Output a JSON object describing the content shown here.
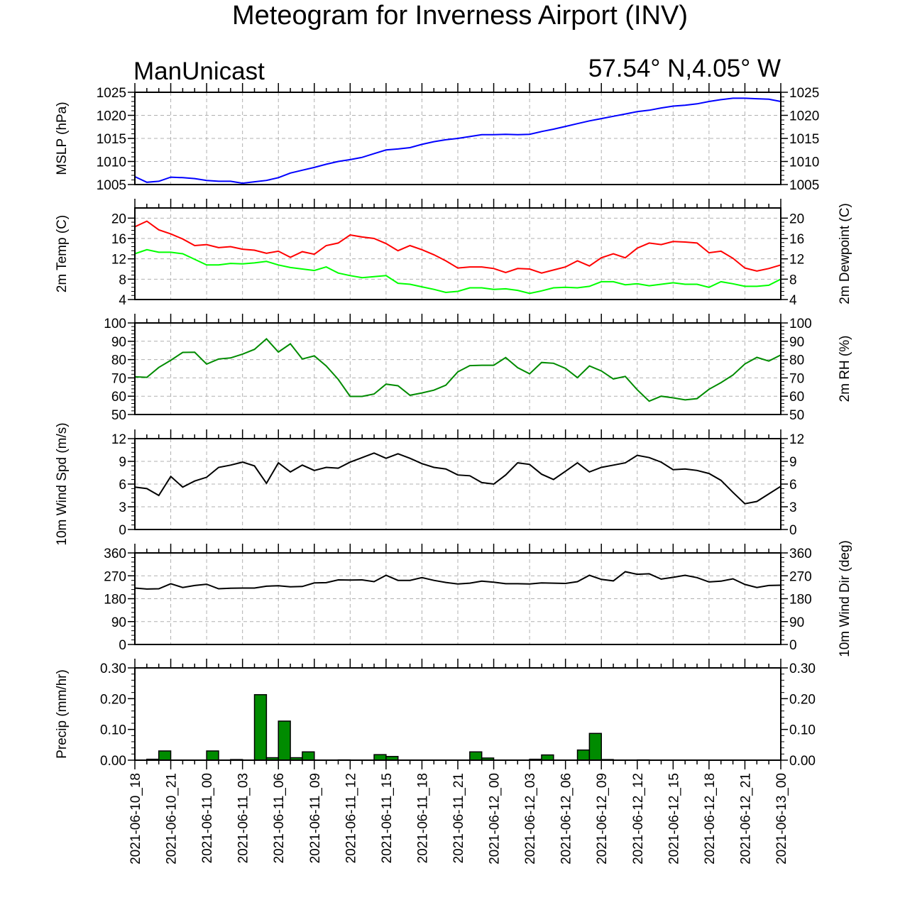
{
  "title": "Meteogram for Inverness Airport (INV)",
  "model": "ManUnicast",
  "location": "57.54° N,4.05° W",
  "chart_data": [
    {
      "id": "mslp",
      "type": "line",
      "ylabel": "MSLP (hPa)",
      "ylim": [
        1005,
        1025
      ],
      "yticks": [
        1005,
        1010,
        1015,
        1020,
        1025
      ],
      "tick_format": "0",
      "grid": true,
      "color": "#0000ff",
      "values": [
        1006.7,
        1005.5,
        1005.7,
        1006.6,
        1006.5,
        1006.3,
        1005.9,
        1005.7,
        1005.7,
        1005.3,
        1005.6,
        1005.9,
        1006.5,
        1007.5,
        1008.1,
        1008.7,
        1009.4,
        1010.0,
        1010.4,
        1010.9,
        1011.7,
        1012.5,
        1012.7,
        1013.0,
        1013.7,
        1014.3,
        1014.7,
        1015.0,
        1015.4,
        1015.8,
        1015.8,
        1015.9,
        1015.8,
        1015.9,
        1016.5,
        1017.0,
        1017.6,
        1018.2,
        1018.8,
        1019.3,
        1019.8,
        1020.3,
        1020.8,
        1021.1,
        1021.6,
        1022.0,
        1022.2,
        1022.5,
        1023.0,
        1023.4,
        1023.7,
        1023.7,
        1023.6,
        1023.5,
        1023.0
      ]
    },
    {
      "id": "temp",
      "type": "line",
      "ylabel": "2m Temp (C)",
      "ylabel_right": "2m Dewpoint (C)",
      "ylim": [
        4,
        22
      ],
      "yticks": [
        4,
        8,
        12,
        16,
        20
      ],
      "tick_format": "0",
      "grid": true,
      "series": [
        {
          "name": "2m Temp (C)",
          "color": "#ff0000",
          "values": [
            18.3,
            19.4,
            17.7,
            16.9,
            15.9,
            14.6,
            14.8,
            14.2,
            14.4,
            13.9,
            13.7,
            13.1,
            13.5,
            12.3,
            13.4,
            12.9,
            14.6,
            15.1,
            16.7,
            16.3,
            16.0,
            15.0,
            13.6,
            14.6,
            13.8,
            12.8,
            11.6,
            10.2,
            10.4,
            10.4,
            10.1,
            9.3,
            10.1,
            10.0,
            9.2,
            9.8,
            10.4,
            11.6,
            10.6,
            12.2,
            13.0,
            12.2,
            14.1,
            15.1,
            14.8,
            15.4,
            15.3,
            15.1,
            13.2,
            13.5,
            12.1,
            10.2,
            9.6,
            10.1,
            10.8
          ]
        },
        {
          "name": "2m Dewpoint (C)",
          "color": "#00ff00",
          "values": [
            13.0,
            13.8,
            13.3,
            13.3,
            13.0,
            11.9,
            10.8,
            10.8,
            11.1,
            11.0,
            11.2,
            11.5,
            10.8,
            10.3,
            10.0,
            9.7,
            10.4,
            9.2,
            8.7,
            8.3,
            8.5,
            8.7,
            7.2,
            7.0,
            6.5,
            6.0,
            5.4,
            5.6,
            6.3,
            6.3,
            6.0,
            6.1,
            5.8,
            5.2,
            5.7,
            6.3,
            6.4,
            6.3,
            6.6,
            7.5,
            7.5,
            6.9,
            7.1,
            6.7,
            7.0,
            7.3,
            7.0,
            7.0,
            6.4,
            7.5,
            7.1,
            6.6,
            6.6,
            6.8,
            8.0
          ]
        }
      ]
    },
    {
      "id": "rh",
      "type": "line",
      "ylabel": "",
      "ylabel_right": "2m RH (%)",
      "ylim": [
        50,
        100
      ],
      "yticks": [
        50,
        60,
        70,
        80,
        90,
        100
      ],
      "tick_format": "0",
      "grid": true,
      "color": "#008b00",
      "values": [
        70.6,
        70.3,
        75.7,
        79.6,
        83.9,
        84.0,
        77.5,
        80.3,
        80.9,
        83.0,
        85.6,
        91.3,
        84.1,
        88.6,
        80.3,
        82.0,
        76.5,
        69.2,
        59.9,
        59.9,
        61.2,
        66.6,
        65.7,
        60.5,
        61.8,
        63.3,
        66.0,
        73.3,
        76.7,
        76.9,
        76.9,
        81.1,
        75.6,
        72.2,
        78.4,
        78.0,
        75.2,
        70.1,
        76.5,
        73.8,
        69.4,
        70.8,
        63.5,
        57.3,
        60.0,
        59.1,
        58.0,
        58.7,
        63.8,
        67.4,
        71.6,
        77.6,
        81.2,
        79.2,
        82.5
      ]
    },
    {
      "id": "wspd",
      "type": "line",
      "ylabel": "10m Wind Spd (m/s)",
      "ylim": [
        0,
        12
      ],
      "yticks": [
        0,
        3,
        6,
        9,
        12
      ],
      "tick_format": "0",
      "grid": true,
      "color": "#000000",
      "values": [
        5.6,
        5.4,
        4.5,
        7.0,
        5.6,
        6.4,
        6.9,
        8.2,
        8.5,
        8.9,
        8.4,
        6.1,
        8.8,
        7.6,
        8.5,
        7.8,
        8.2,
        8.1,
        8.9,
        9.5,
        10.1,
        9.4,
        10.0,
        9.4,
        8.7,
        8.2,
        8.0,
        7.2,
        7.1,
        6.2,
        6.0,
        7.2,
        8.8,
        8.6,
        7.3,
        6.6,
        7.7,
        8.8,
        7.6,
        8.2,
        8.5,
        8.8,
        9.8,
        9.5,
        8.9,
        7.9,
        8.0,
        7.8,
        7.4,
        6.5,
        4.9,
        3.4,
        3.7,
        4.7,
        5.7
      ]
    },
    {
      "id": "wdir",
      "type": "line",
      "ylabel": "",
      "ylabel_right": "10m Wind Dir (deg)",
      "ylim": [
        0,
        360
      ],
      "yticks": [
        0,
        90,
        180,
        270,
        360
      ],
      "tick_format": "0",
      "grid": true,
      "color": "#000000",
      "values": [
        222,
        218,
        219,
        239,
        224,
        232,
        237,
        219,
        221,
        222,
        222,
        229,
        231,
        227,
        228,
        242,
        243,
        254,
        253,
        254,
        247,
        272,
        252,
        252,
        263,
        252,
        244,
        238,
        241,
        249,
        245,
        239,
        239,
        238,
        242,
        241,
        240,
        247,
        272,
        256,
        250,
        286,
        276,
        278,
        257,
        264,
        272,
        263,
        246,
        249,
        258,
        236,
        224,
        232,
        233
      ]
    },
    {
      "id": "precip",
      "type": "bar",
      "ylabel": "Precip (mm/hr)",
      "ylim": [
        0,
        0.3
      ],
      "yticks": [
        0.0,
        0.1,
        0.2,
        0.3
      ],
      "tick_format": "2",
      "grid": false,
      "color": "#008b00",
      "values": [
        0,
        0.003,
        0.03,
        0,
        0,
        0,
        0.03,
        0,
        0.002,
        0,
        0.213,
        0.008,
        0.127,
        0.008,
        0.027,
        0,
        0,
        0.001,
        0,
        0,
        0.018,
        0.012,
        0,
        0,
        0,
        0,
        0,
        0,
        0.027,
        0.007,
        0,
        0,
        0,
        0.003,
        0.017,
        0,
        0,
        0.033,
        0.087,
        0.002,
        0,
        0,
        0.001,
        0,
        0,
        0,
        0,
        0,
        0,
        0,
        0,
        0,
        0,
        0,
        0
      ]
    }
  ],
  "x_axis": {
    "step_hours": 1,
    "labels": [
      "2021-06-10_18",
      "2021-06-10_21",
      "2021-06-11_00",
      "2021-06-11_03",
      "2021-06-11_06",
      "2021-06-11_09",
      "2021-06-11_12",
      "2021-06-11_15",
      "2021-06-11_18",
      "2021-06-11_21",
      "2021-06-12_00",
      "2021-06-12_03",
      "2021-06-12_06",
      "2021-06-12_09",
      "2021-06-12_12",
      "2021-06-12_15",
      "2021-06-12_18",
      "2021-06-12_21",
      "2021-06-13_00"
    ]
  }
}
